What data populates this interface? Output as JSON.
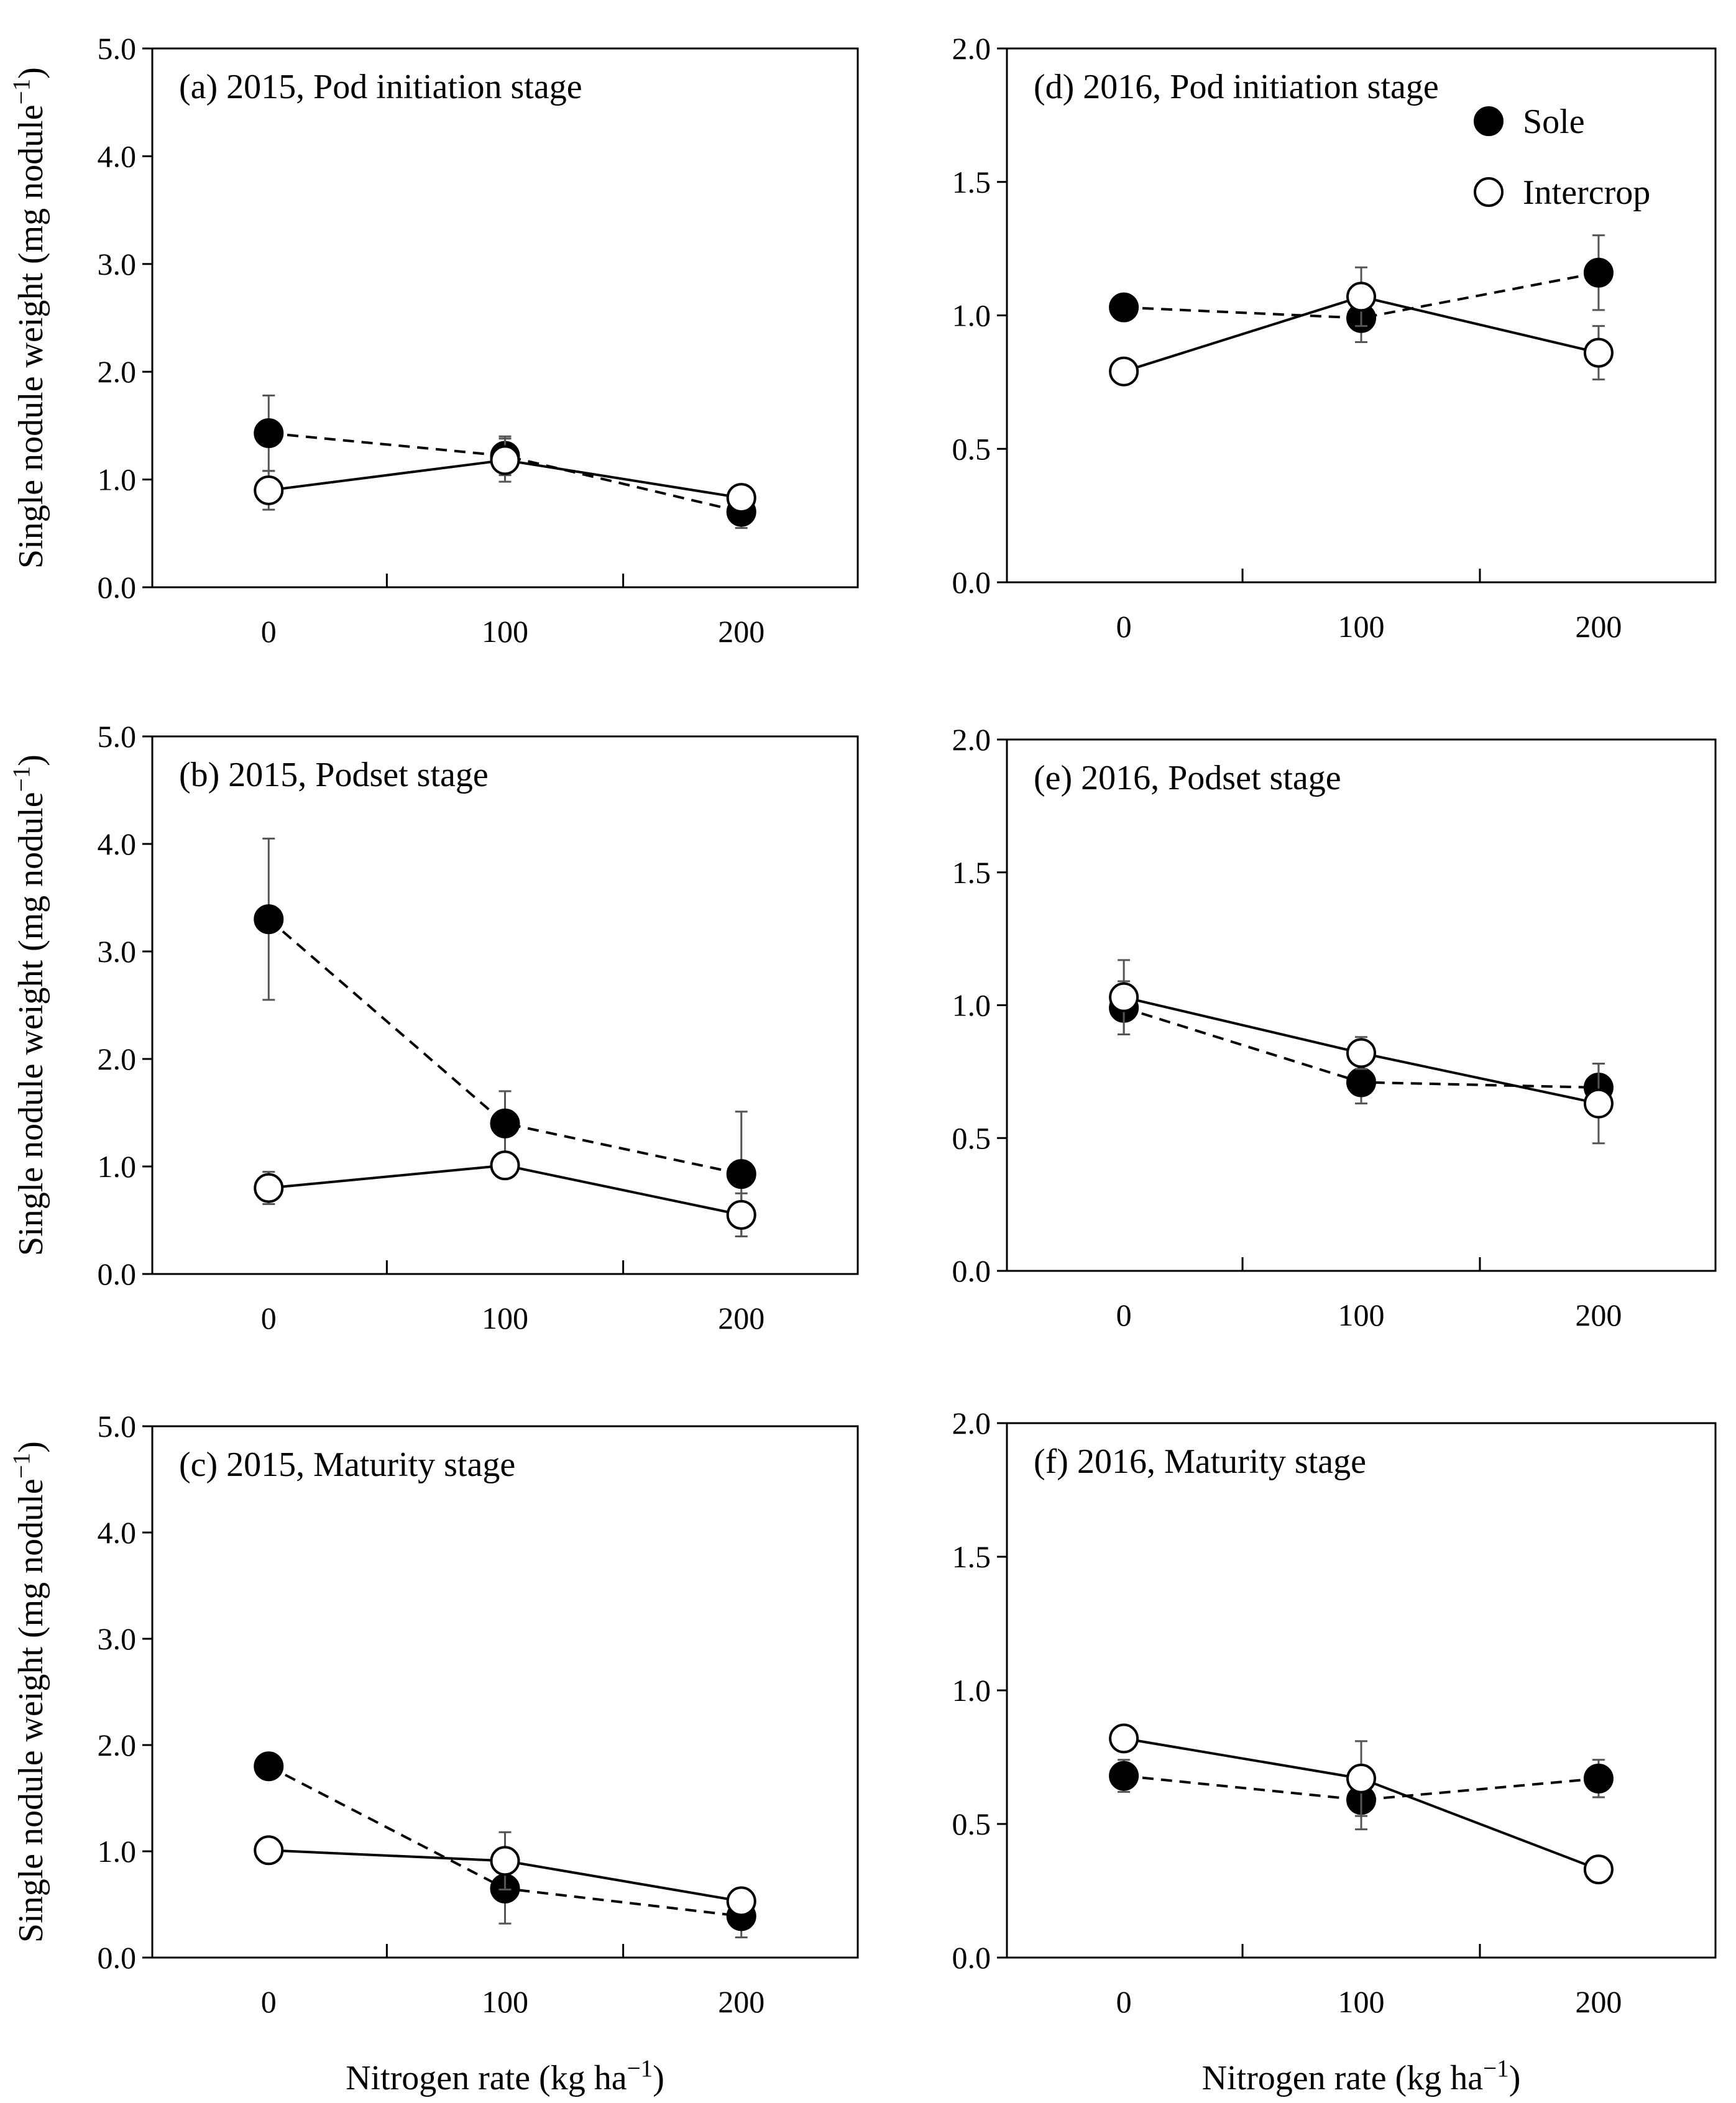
{
  "chart_data": [
    {
      "type": "line",
      "panel": "a",
      "title": "(a) 2015, Pod initiation stage",
      "xlabel": "",
      "ylabel": "Single nodule weight (mg nodule⁻¹)",
      "x": [
        0,
        100,
        200
      ],
      "x_tick_labels": [
        "0",
        "100",
        "200"
      ],
      "ylim": [
        0,
        5
      ],
      "y_ticks": [
        0,
        1,
        2,
        3,
        4,
        5
      ],
      "y_tick_labels": [
        "0.0",
        "1.0",
        "2.0",
        "3.0",
        "4.0",
        "5.0"
      ],
      "grid": false,
      "series": [
        {
          "name": "Sole",
          "marker": "filled-circle",
          "line": "dashed",
          "values": [
            1.43,
            1.22,
            0.7
          ],
          "errors": [
            0.35,
            0.18,
            0.15
          ]
        },
        {
          "name": "Intercrop",
          "marker": "open-circle",
          "line": "solid",
          "values": [
            0.9,
            1.18,
            0.83
          ],
          "errors": [
            0.18,
            0.2,
            0.07
          ]
        }
      ]
    },
    {
      "type": "line",
      "panel": "b",
      "title": "(b) 2015, Podset stage",
      "xlabel": "",
      "ylabel": "Single nodule weight (mg nodule⁻¹)",
      "x": [
        0,
        100,
        200
      ],
      "x_tick_labels": [
        "0",
        "100",
        "200"
      ],
      "ylim": [
        0,
        5
      ],
      "y_ticks": [
        0,
        1,
        2,
        3,
        4,
        5
      ],
      "y_tick_labels": [
        "0.0",
        "1.0",
        "2.0",
        "3.0",
        "4.0",
        "5.0"
      ],
      "grid": false,
      "series": [
        {
          "name": "Sole",
          "marker": "filled-circle",
          "line": "dashed",
          "values": [
            3.3,
            1.4,
            0.93
          ],
          "errors": [
            0.75,
            0.3,
            0.58
          ]
        },
        {
          "name": "Intercrop",
          "marker": "open-circle",
          "line": "solid",
          "values": [
            0.8,
            1.01,
            0.55
          ],
          "errors": [
            0.15,
            0.05,
            0.2
          ]
        }
      ]
    },
    {
      "type": "line",
      "panel": "c",
      "title": "(c) 2015, Maturity stage",
      "xlabel": "Nitrogen rate (kg ha⁻¹)",
      "ylabel": "Single nodule weight (mg nodule⁻¹)",
      "x": [
        0,
        100,
        200
      ],
      "x_tick_labels": [
        "0",
        "100",
        "200"
      ],
      "ylim": [
        0,
        5
      ],
      "y_ticks": [
        0,
        1,
        2,
        3,
        4,
        5
      ],
      "y_tick_labels": [
        "0.0",
        "1.0",
        "2.0",
        "3.0",
        "4.0",
        "5.0"
      ],
      "grid": false,
      "series": [
        {
          "name": "Sole",
          "marker": "filled-circle",
          "line": "dashed",
          "values": [
            1.8,
            0.65,
            0.39
          ],
          "errors": [
            0.05,
            0.33,
            0.2
          ]
        },
        {
          "name": "Intercrop",
          "marker": "open-circle",
          "line": "solid",
          "values": [
            1.01,
            0.91,
            0.53
          ],
          "errors": [
            0.05,
            0.27,
            0.05
          ]
        }
      ]
    },
    {
      "type": "line",
      "panel": "d",
      "title": "(d) 2016, Pod initiation stage",
      "xlabel": "",
      "ylabel": "",
      "x": [
        0,
        100,
        200
      ],
      "x_tick_labels": [
        "0",
        "100",
        "200"
      ],
      "ylim": [
        0,
        2
      ],
      "y_ticks": [
        0,
        0.5,
        1,
        1.5,
        2
      ],
      "y_tick_labels": [
        "0.0",
        "0.5",
        "1.0",
        "1.5",
        "2.0"
      ],
      "grid": false,
      "legend": {
        "position": "top-right"
      },
      "series": [
        {
          "name": "Sole",
          "marker": "filled-circle",
          "line": "dashed",
          "values": [
            1.03,
            0.99,
            1.16
          ],
          "errors": [
            0.02,
            0.09,
            0.14
          ]
        },
        {
          "name": "Intercrop",
          "marker": "open-circle",
          "line": "solid",
          "values": [
            0.79,
            1.07,
            0.86
          ],
          "errors": [
            0.02,
            0.11,
            0.1
          ]
        }
      ]
    },
    {
      "type": "line",
      "panel": "e",
      "title": "(e) 2016, Podset stage",
      "xlabel": "",
      "ylabel": "",
      "x": [
        0,
        100,
        200
      ],
      "x_tick_labels": [
        "0",
        "100",
        "200"
      ],
      "ylim": [
        0,
        2
      ],
      "y_ticks": [
        0,
        0.5,
        1,
        1.5,
        2
      ],
      "y_tick_labels": [
        "0.0",
        "0.5",
        "1.0",
        "1.5",
        "2.0"
      ],
      "grid": false,
      "series": [
        {
          "name": "Sole",
          "marker": "filled-circle",
          "line": "dashed",
          "values": [
            0.99,
            0.71,
            0.69
          ],
          "errors": [
            0.1,
            0.08,
            0.09
          ]
        },
        {
          "name": "Intercrop",
          "marker": "open-circle",
          "line": "solid",
          "values": [
            1.03,
            0.82,
            0.63
          ],
          "errors": [
            0.14,
            0.06,
            0.15
          ]
        }
      ]
    },
    {
      "type": "line",
      "panel": "f",
      "title": "(f) 2016, Maturity stage",
      "xlabel": "Nitrogen rate (kg ha⁻¹)",
      "ylabel": "",
      "x": [
        0,
        100,
        200
      ],
      "x_tick_labels": [
        "0",
        "100",
        "200"
      ],
      "ylim": [
        0,
        2
      ],
      "y_ticks": [
        0,
        0.5,
        1,
        1.5,
        2
      ],
      "y_tick_labels": [
        "0.0",
        "0.5",
        "1.0",
        "1.5",
        "2.0"
      ],
      "grid": false,
      "series": [
        {
          "name": "Sole",
          "marker": "filled-circle",
          "line": "dashed",
          "values": [
            0.68,
            0.59,
            0.67
          ],
          "errors": [
            0.06,
            0.11,
            0.07
          ]
        },
        {
          "name": "Intercrop",
          "marker": "open-circle",
          "line": "solid",
          "values": [
            0.82,
            0.67,
            0.33
          ],
          "errors": [
            0.03,
            0.14,
            0.02
          ]
        }
      ]
    }
  ],
  "legend": {
    "position": "top-right",
    "items": [
      {
        "label": "Sole",
        "marker": "filled-circle"
      },
      {
        "label": "Intercrop",
        "marker": "open-circle"
      }
    ]
  },
  "colors": {
    "line": "#000000",
    "marker_fill_sole": "#000000",
    "marker_fill_intercrop": "#ffffff",
    "error_bar": "#555555",
    "background": "#ffffff"
  }
}
